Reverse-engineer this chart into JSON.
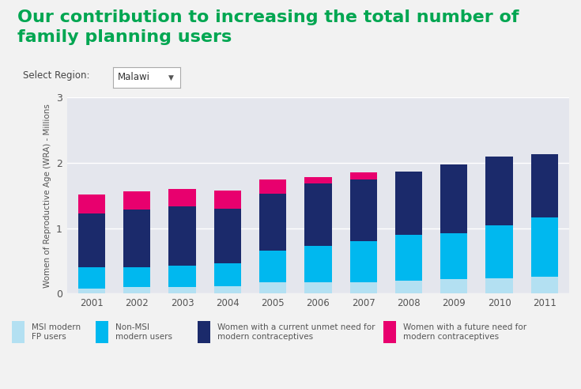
{
  "years": [
    2001,
    2002,
    2003,
    2004,
    2005,
    2006,
    2007,
    2008,
    2009,
    2010,
    2011
  ],
  "msi_modern": [
    0.08,
    0.1,
    0.1,
    0.12,
    0.18,
    0.18,
    0.18,
    0.2,
    0.22,
    0.24,
    0.26
  ],
  "non_msi_modern": [
    0.32,
    0.3,
    0.33,
    0.35,
    0.48,
    0.55,
    0.62,
    0.7,
    0.7,
    0.8,
    0.9
  ],
  "unmet_need_current": [
    0.82,
    0.88,
    0.9,
    0.83,
    0.87,
    0.95,
    0.95,
    0.96,
    1.05,
    1.05,
    0.97
  ],
  "future_need": [
    0.3,
    0.28,
    0.27,
    0.27,
    0.22,
    0.1,
    0.1,
    0.0,
    0.0,
    0.0,
    0.0
  ],
  "colors": {
    "msi_modern": "#b3e0f2",
    "non_msi_modern": "#00b8ef",
    "unmet_need_current": "#1b2a6b",
    "future_need": "#e8006e"
  },
  "legend_labels": [
    "MSI modern\nFP users",
    "Non-MSI\nmodern users",
    "Women with a current unmet need for\nmodern contraceptives",
    "Women with a future need for\nmodern contraceptives"
  ],
  "title_line1": "Our contribution to increasing the total number of",
  "title_line2": "family planning users",
  "ylabel": "Women of Reproductive Age (WRA) - Millions",
  "ylim": [
    0,
    3
  ],
  "yticks": [
    0,
    1,
    2,
    3
  ],
  "title_color": "#00a651",
  "title_fontsize": 16,
  "axis_bg_color": "#e4e6ed",
  "fig_bg_color": "#f2f2f2",
  "select_region_text": "Select Region:",
  "region_name": "Malawi",
  "bar_width": 0.6
}
